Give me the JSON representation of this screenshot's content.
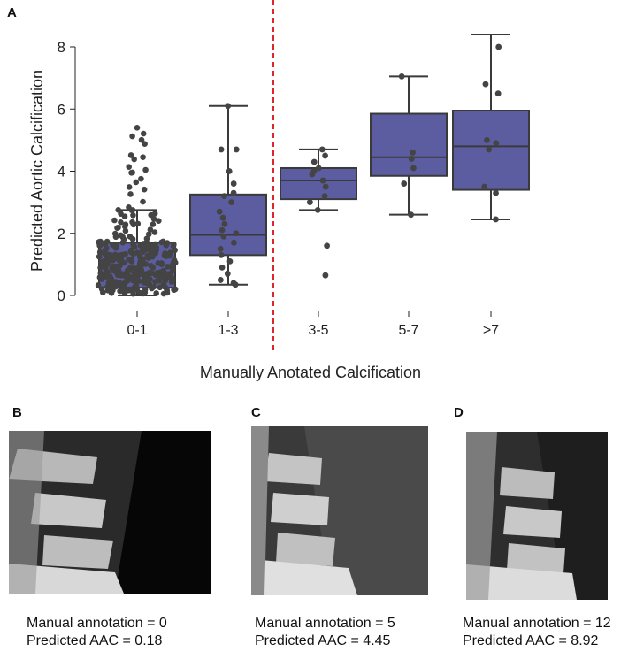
{
  "panels": {
    "a_label": "A",
    "b_label": "B",
    "c_label": "C",
    "d_label": "D"
  },
  "chart_data": {
    "type": "box",
    "xlabel": "Manually Anotated Calcification",
    "ylabel": "Predicted Aortic Calcification",
    "ylim": [
      0,
      8
    ],
    "yticks": [
      0,
      2,
      4,
      6,
      8
    ],
    "categories": [
      "0-1",
      "1-3",
      "3-5",
      "5-7",
      ">7"
    ],
    "box_color": "#5c5ca0",
    "point_color": "#444444",
    "threshold_line": {
      "between": [
        "1-3",
        "3-5"
      ],
      "color": "#e0242c",
      "style": "dashed"
    },
    "boxes": [
      {
        "category": "0-1",
        "whisker_low": 0.0,
        "q1": 0.25,
        "median": 0.75,
        "q3": 1.7,
        "whisker_high": 2.75,
        "points_count_approx": 300,
        "points_max": 5.4
      },
      {
        "category": "1-3",
        "whisker_low": 0.35,
        "q1": 1.3,
        "median": 1.95,
        "q3": 3.25,
        "whisker_high": 6.1,
        "points": [
          0.35,
          0.4,
          0.5,
          0.7,
          0.9,
          1.1,
          1.3,
          1.5,
          1.7,
          1.9,
          2.0,
          2.1,
          2.3,
          2.5,
          2.7,
          3.0,
          3.2,
          3.3,
          3.6,
          4.0,
          4.7,
          4.7,
          6.1
        ]
      },
      {
        "category": "3-5",
        "whisker_low": 2.75,
        "q1": 3.1,
        "median": 3.7,
        "q3": 4.1,
        "whisker_high": 4.7,
        "points": [
          0.65,
          1.6,
          2.75,
          3.0,
          3.2,
          3.5,
          3.7,
          3.9,
          4.0,
          4.1,
          4.3,
          4.5,
          4.7
        ]
      },
      {
        "category": "5-7",
        "whisker_low": 2.6,
        "q1": 3.85,
        "median": 4.45,
        "q3": 5.85,
        "whisker_high": 7.05,
        "points": [
          2.6,
          3.6,
          4.1,
          4.4,
          4.6,
          7.05
        ]
      },
      {
        "category": ">7",
        "whisker_low": 2.45,
        "q1": 3.4,
        "median": 4.8,
        "q3": 5.95,
        "whisker_high": 8.4,
        "points": [
          2.45,
          3.3,
          3.5,
          4.7,
          4.9,
          5.0,
          6.5,
          6.8,
          8.0
        ]
      }
    ]
  },
  "cases": [
    {
      "id": "B",
      "manual": "Manual annotation = 0",
      "predicted": "Predicted AAC = 0.18"
    },
    {
      "id": "C",
      "manual": "Manual annotation = 5",
      "predicted": "Predicted AAC = 4.45"
    },
    {
      "id": "D",
      "manual": "Manual annotation = 12",
      "predicted": "Predicted AAC = 8.92"
    }
  ]
}
